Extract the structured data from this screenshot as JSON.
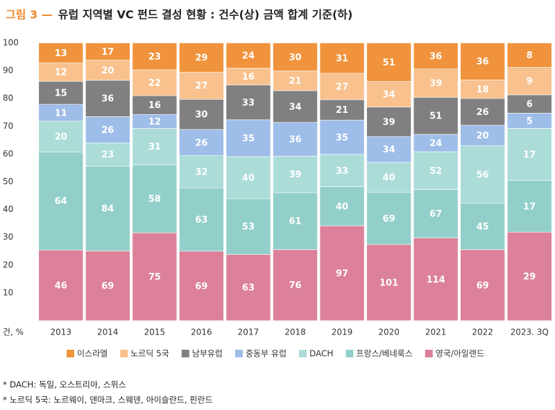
{
  "chart_data": {
    "type": "stacked_bar",
    "stacking": "percent",
    "title_prefix": "그림 3 —",
    "title": "유럽 지역별 VC 펀드 결성 현황 : 건수(상) 금액 합계 기준(하)",
    "title_prefix_color": "#ef8a2e",
    "y_unit_label": "건, %",
    "categories": [
      "2013",
      "2014",
      "2015",
      "2016",
      "2017",
      "2018",
      "2019",
      "2020",
      "2021",
      "2022",
      "2023. 3Q"
    ],
    "series": [
      {
        "name": "영국/아일랜드",
        "color": "#dc8199",
        "values": [
          46,
          69,
          75,
          69,
          63,
          76,
          97,
          101,
          114,
          69,
          29
        ]
      },
      {
        "name": "프랑스/베네룩스",
        "color": "#93cfca",
        "values": [
          64,
          84,
          58,
          63,
          53,
          61,
          40,
          69,
          67,
          45,
          17
        ]
      },
      {
        "name": "DACH",
        "color": "#acdcd8",
        "values": [
          20,
          23,
          31,
          32,
          40,
          39,
          33,
          40,
          52,
          56,
          17
        ]
      },
      {
        "name": "중동부 유럽",
        "color": "#9ebde8",
        "values": [
          11,
          26,
          12,
          26,
          35,
          36,
          35,
          34,
          24,
          20,
          5
        ]
      },
      {
        "name": "남부유럽",
        "color": "#808080",
        "values": [
          15,
          36,
          16,
          30,
          33,
          34,
          21,
          39,
          51,
          26,
          6
        ]
      },
      {
        "name": "노르딕 5국",
        "color": "#f8c18d",
        "values": [
          12,
          20,
          22,
          27,
          16,
          21,
          27,
          34,
          39,
          18,
          9
        ]
      },
      {
        "name": "이스라엘",
        "color": "#f0933c",
        "values": [
          13,
          17,
          23,
          29,
          24,
          30,
          31,
          51,
          36,
          36,
          8
        ]
      }
    ],
    "legend_order": [
      6,
      5,
      4,
      3,
      2,
      1,
      0
    ],
    "ylim": [
      0,
      100
    ],
    "yticks": [
      10,
      20,
      30,
      40,
      50,
      60,
      70,
      80,
      90,
      100
    ],
    "grid": false,
    "footnotes": [
      "* DACH: 독일, 오스트리아, 스위스",
      "* 노르딕 5국: 노르웨이, 덴마크, 스웨덴, 아이슬란드, 핀란드"
    ]
  }
}
